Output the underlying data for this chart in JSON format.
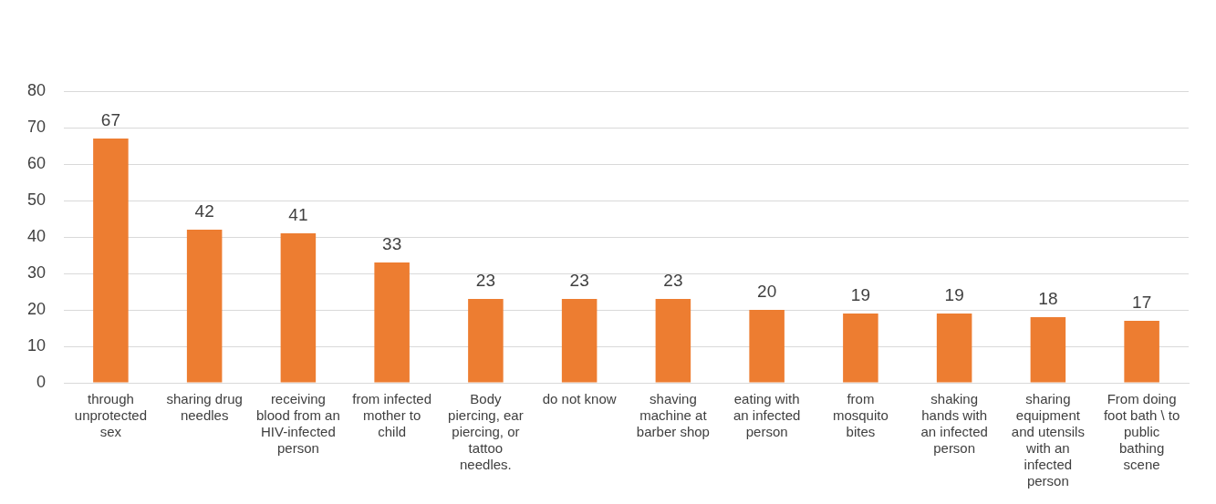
{
  "chart_data": {
    "type": "bar",
    "categories": [
      "through unprotected sex",
      "sharing drug needles",
      "receiving blood from an HIV-infected person",
      "from infected mother to child",
      "Body piercing, ear piercing, or tattoo needles.",
      "do not know",
      "shaving machine at barber shop",
      "eating with an infected person",
      "from mosquito bites",
      "shaking hands with an infected person",
      "sharing equipment and utensils with an infected person",
      "From doing foot bath \\ to public bathing scene"
    ],
    "values": [
      67,
      42,
      41,
      33,
      23,
      23,
      23,
      20,
      19,
      19,
      18,
      17
    ],
    "color": "#ed7d31",
    "ylim": [
      0,
      80
    ],
    "yticks": [
      0,
      10,
      20,
      30,
      40,
      50,
      60,
      70,
      80
    ],
    "grid": "y",
    "data_labels": true,
    "legend": false
  }
}
